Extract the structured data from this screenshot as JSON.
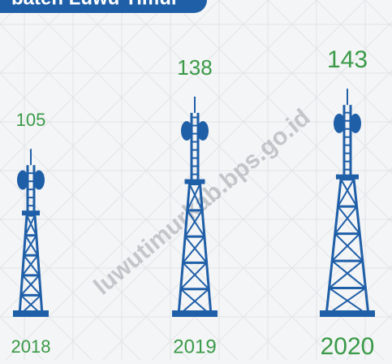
{
  "chart_data": {
    "type": "bar",
    "title": "baten Luwu Timur",
    "annotation": "luwutimurkab.bps.go.id",
    "categories": [
      "2018",
      "2019",
      "2020"
    ],
    "values": [
      105,
      138,
      143
    ],
    "color": "#1f5fa8",
    "label_color": "#3a9a48"
  }
}
